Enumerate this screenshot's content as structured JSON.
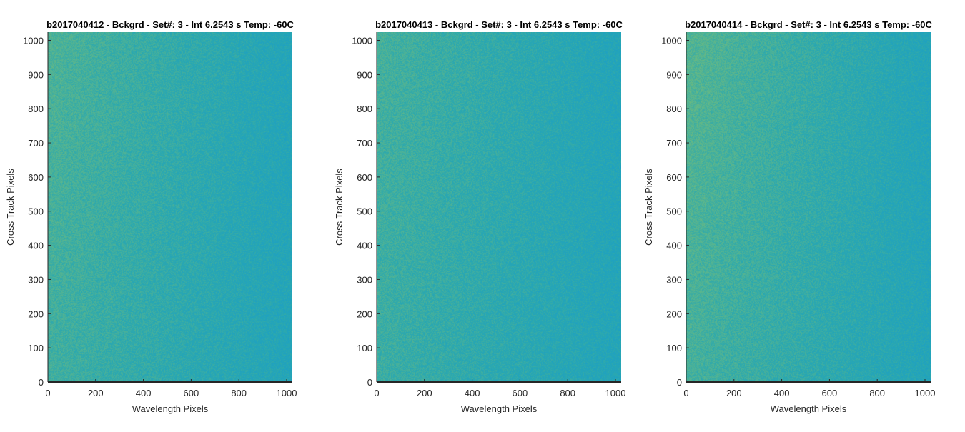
{
  "colors": {
    "background": "#ffffff",
    "axis": "#262626",
    "colormap": [
      "#1a9ec9",
      "#2aa8b0",
      "#5fb78a",
      "#9cc45a"
    ]
  },
  "chart_data": [
    {
      "type": "heatmap",
      "title": "b2017040412 - Bckgrd - Set#: 3 - Int 6.2543 s Temp: -60C",
      "xlabel": "Wavelength Pixels",
      "ylabel": "Cross Track Pixels",
      "xlim": [
        0,
        1024
      ],
      "ylim": [
        0,
        1024
      ],
      "xticks": [
        "0",
        "200",
        "400",
        "600",
        "800",
        "1000"
      ],
      "yticks": [
        "0",
        "100",
        "200",
        "300",
        "400",
        "500",
        "600",
        "700",
        "800",
        "900",
        "1000"
      ],
      "colormap": "parula",
      "grid": false
    },
    {
      "type": "heatmap",
      "title": "b2017040413 - Bckgrd - Set#: 3 - Int 6.2543 s Temp: -60C",
      "xlabel": "Wavelength Pixels",
      "ylabel": "Cross Track Pixels",
      "xlim": [
        0,
        1024
      ],
      "ylim": [
        0,
        1024
      ],
      "xticks": [
        "0",
        "200",
        "400",
        "600",
        "800",
        "1000"
      ],
      "yticks": [
        "0",
        "100",
        "200",
        "300",
        "400",
        "500",
        "600",
        "700",
        "800",
        "900",
        "1000"
      ],
      "colormap": "parula",
      "grid": false
    },
    {
      "type": "heatmap",
      "title": "b2017040414 - Bckgrd - Set#: 3 - Int 6.2543 s Temp: -60C",
      "xlabel": "Wavelength Pixels",
      "ylabel": "Cross Track Pixels",
      "xlim": [
        0,
        1024
      ],
      "ylim": [
        0,
        1024
      ],
      "xticks": [
        "0",
        "200",
        "400",
        "600",
        "800",
        "1000"
      ],
      "yticks": [
        "0",
        "100",
        "200",
        "300",
        "400",
        "500",
        "600",
        "700",
        "800",
        "900",
        "1000"
      ],
      "colormap": "parula",
      "grid": false
    }
  ]
}
